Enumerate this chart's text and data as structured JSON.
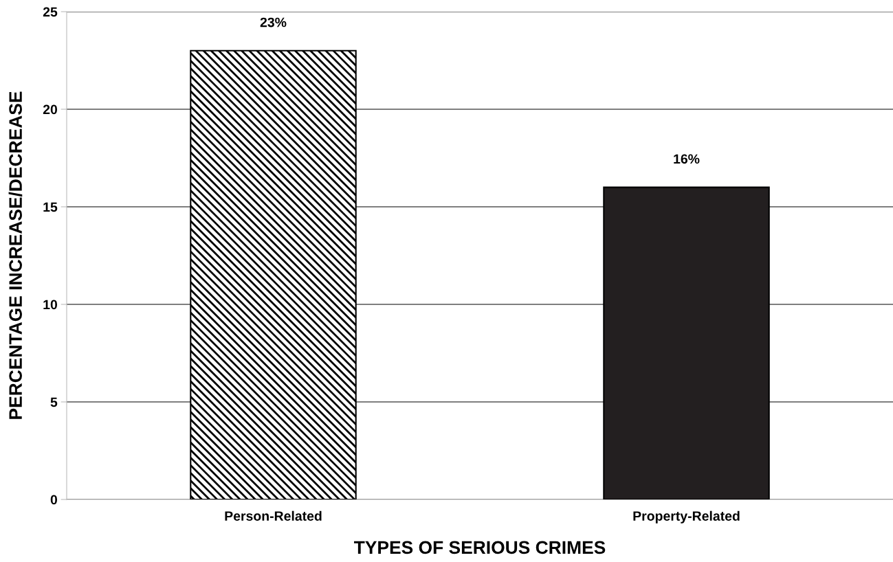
{
  "chart_data": {
    "type": "bar",
    "xlabel": "TYPES OF SERIOUS CRIMES",
    "ylabel": "PERCENTAGE INCREASE/DECREASE",
    "categories": [
      "Person-Related",
      "Property-Related"
    ],
    "values": [
      23,
      16
    ],
    "colors": [
      "#000000",
      "#231f20"
    ],
    "value_labels": [
      "23%",
      "16%"
    ],
    "ylim": [
      0,
      25
    ],
    "yticks": [
      0,
      5,
      10,
      15,
      20,
      25
    ],
    "grid": "y"
  }
}
